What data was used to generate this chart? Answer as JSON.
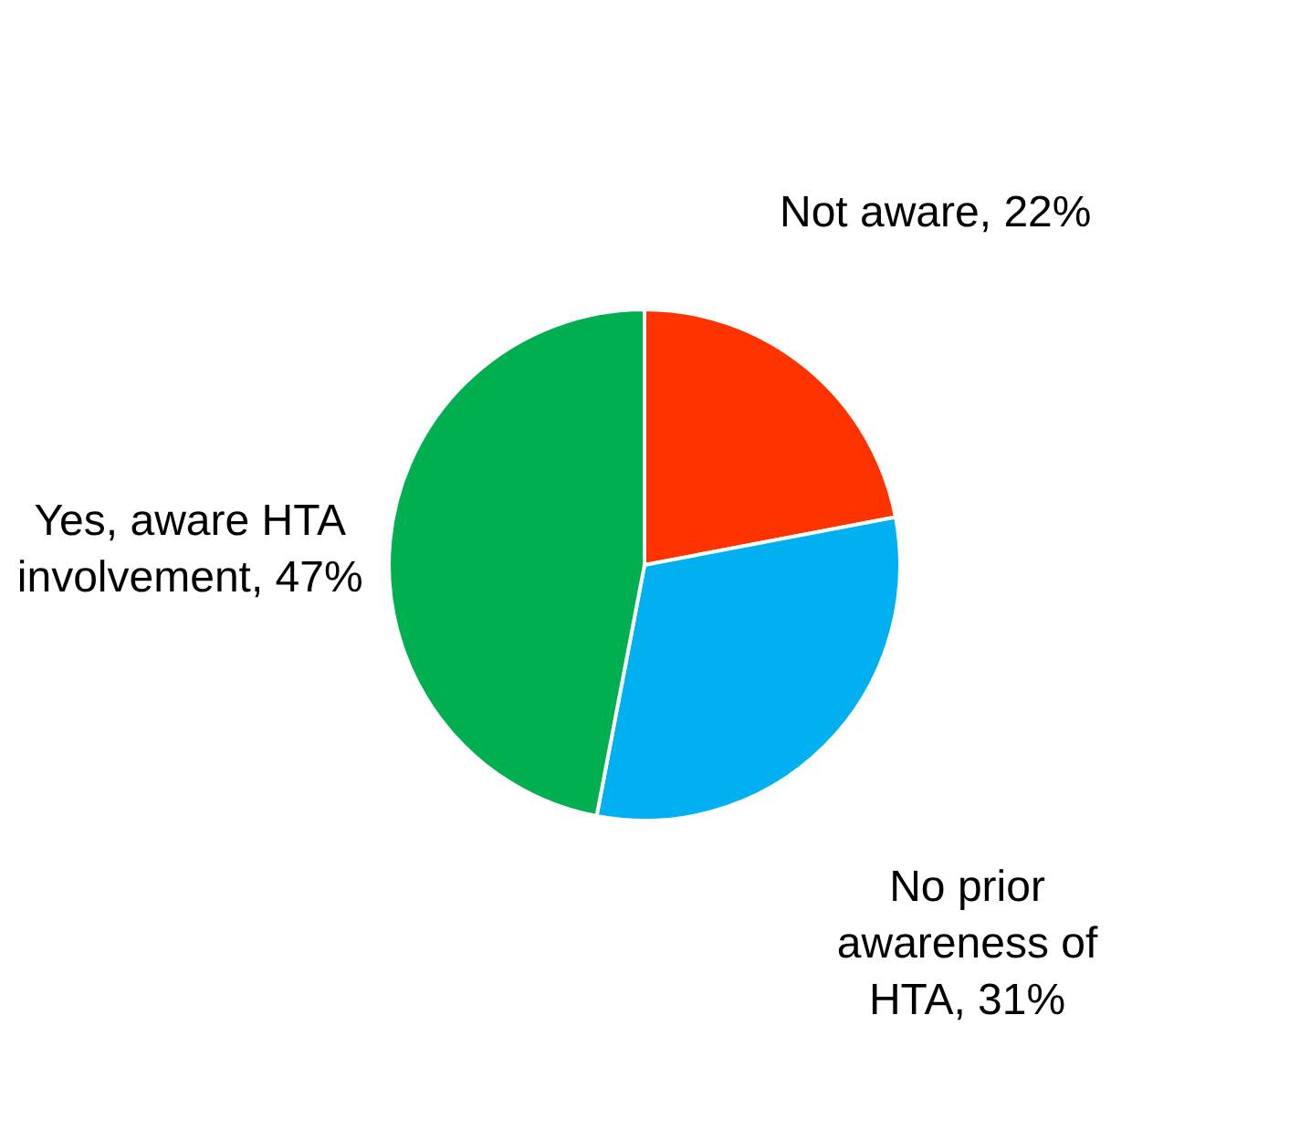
{
  "chart_data": {
    "type": "pie",
    "categories": [
      "Not aware",
      "No prior awareness of HTA",
      "Yes, aware HTA involvement"
    ],
    "values": [
      22,
      31,
      47
    ],
    "value_labels": [
      "22%",
      "31%",
      "47%"
    ],
    "colors": [
      "#ff3300",
      "#00b0f0",
      "#00b050"
    ],
    "legend": false
  }
}
